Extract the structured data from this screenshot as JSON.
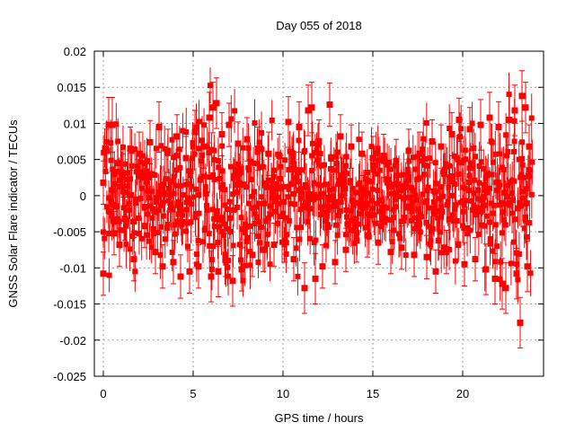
{
  "chart_data": {
    "type": "scatter",
    "title": "Day 055 of 2018",
    "xlabel": "GPS time / hours",
    "ylabel": "GNSS Solar Flare indicator / TECUs",
    "xlim": [
      -0.5,
      24.5
    ],
    "ylim": [
      -0.025,
      0.02
    ],
    "xticks": [
      0,
      5,
      10,
      15,
      20
    ],
    "xtick_labels": [
      "0",
      "5",
      "10",
      "15",
      "20"
    ],
    "yticks": [
      -0.025,
      -0.02,
      -0.015,
      -0.01,
      -0.005,
      0,
      0.005,
      0.01,
      0.015,
      0.02
    ],
    "ytick_labels": [
      "-0.025",
      "-0.02",
      "-0.015",
      "-0.01",
      "-0.005",
      "0",
      "0.005",
      "0.01",
      "0.015",
      "0.02"
    ],
    "grid": true,
    "series": [
      {
        "name": "GNSS Solar Flare indicator",
        "color": "#ff0000",
        "marker": "square",
        "error_bars": true,
        "points": [
          {
            "x": 0.0,
            "y": 0.0018,
            "err": 0.003
          },
          {
            "x": 0.0,
            "y": -0.0108,
            "err": 0.003
          },
          {
            "x": 0.2,
            "y": 0.0062,
            "err": 0.003
          },
          {
            "x": 0.3,
            "y": 0.0098,
            "err": 0.0038
          },
          {
            "x": 0.5,
            "y": 0.0098,
            "err": 0.0038
          },
          {
            "x": 0.6,
            "y": -0.0052,
            "err": 0.003
          },
          {
            "x": 0.8,
            "y": 0.0045,
            "err": 0.003
          },
          {
            "x": 0.9,
            "y": -0.0068,
            "err": 0.003
          },
          {
            "x": 1.1,
            "y": 0.0028,
            "err": 0.003
          },
          {
            "x": 1.2,
            "y": -0.0032,
            "err": 0.003
          },
          {
            "x": 1.5,
            "y": 0.0065,
            "err": 0.003
          },
          {
            "x": 1.7,
            "y": -0.0088,
            "err": 0.003
          },
          {
            "x": 2.0,
            "y": 0.0058,
            "err": 0.003
          },
          {
            "x": 2.3,
            "y": -0.0042,
            "err": 0.003
          },
          {
            "x": 2.6,
            "y": 0.0074,
            "err": 0.003
          },
          {
            "x": 2.9,
            "y": -0.0078,
            "err": 0.003
          },
          {
            "x": 3.1,
            "y": 0.0095,
            "err": 0.0035
          },
          {
            "x": 3.3,
            "y": -0.0098,
            "err": 0.003
          },
          {
            "x": 3.6,
            "y": 0.0062,
            "err": 0.003
          },
          {
            "x": 3.9,
            "y": -0.0092,
            "err": 0.003
          },
          {
            "x": 4.1,
            "y": 0.0082,
            "err": 0.003
          },
          {
            "x": 4.3,
            "y": -0.0112,
            "err": 0.003
          },
          {
            "x": 4.6,
            "y": 0.0052,
            "err": 0.003
          },
          {
            "x": 4.8,
            "y": -0.0105,
            "err": 0.003
          },
          {
            "x": 5.1,
            "y": 0.0088,
            "err": 0.003
          },
          {
            "x": 5.3,
            "y": -0.0098,
            "err": 0.003
          },
          {
            "x": 5.6,
            "y": 0.0068,
            "err": 0.003
          },
          {
            "x": 5.9,
            "y": 0.0108,
            "err": 0.0035
          },
          {
            "x": 6.0,
            "y": -0.0112,
            "err": 0.0035
          },
          {
            "x": 6.1,
            "y": 0.0122,
            "err": 0.0035
          },
          {
            "x": 6.3,
            "y": 0.0128,
            "err": 0.0035
          },
          {
            "x": 6.4,
            "y": -0.0105,
            "err": 0.0035
          },
          {
            "x": 6.6,
            "y": 0.0085,
            "err": 0.003
          },
          {
            "x": 6.8,
            "y": -0.0082,
            "err": 0.003
          },
          {
            "x": 7.0,
            "y": 0.0098,
            "err": 0.003
          },
          {
            "x": 7.2,
            "y": -0.0118,
            "err": 0.0035
          },
          {
            "x": 7.5,
            "y": 0.0072,
            "err": 0.003
          },
          {
            "x": 7.7,
            "y": -0.0102,
            "err": 0.003
          },
          {
            "x": 8.0,
            "y": 0.0078,
            "err": 0.003
          },
          {
            "x": 8.3,
            "y": -0.0082,
            "err": 0.003
          },
          {
            "x": 8.6,
            "y": 0.0065,
            "err": 0.003
          },
          {
            "x": 8.9,
            "y": -0.0075,
            "err": 0.003
          },
          {
            "x": 9.2,
            "y": 0.0058,
            "err": 0.003
          },
          {
            "x": 9.5,
            "y": -0.0068,
            "err": 0.003
          },
          {
            "x": 9.8,
            "y": 0.0055,
            "err": 0.003
          },
          {
            "x": 10.1,
            "y": -0.0062,
            "err": 0.003
          },
          {
            "x": 10.3,
            "y": 0.0102,
            "err": 0.0035
          },
          {
            "x": 10.6,
            "y": -0.0088,
            "err": 0.003
          },
          {
            "x": 10.9,
            "y": 0.0095,
            "err": 0.0035
          },
          {
            "x": 11.2,
            "y": -0.0128,
            "err": 0.0035
          },
          {
            "x": 11.4,
            "y": 0.0118,
            "err": 0.0035
          },
          {
            "x": 11.6,
            "y": 0.0122,
            "err": 0.0035
          },
          {
            "x": 11.8,
            "y": -0.0115,
            "err": 0.0035
          },
          {
            "x": 12.0,
            "y": 0.0075,
            "err": 0.003
          },
          {
            "x": 12.2,
            "y": -0.0098,
            "err": 0.003
          },
          {
            "x": 12.6,
            "y": 0.0126,
            "err": 0.003
          },
          {
            "x": 12.9,
            "y": -0.0092,
            "err": 0.003
          },
          {
            "x": 13.2,
            "y": 0.0082,
            "err": 0.003
          },
          {
            "x": 13.5,
            "y": -0.0075,
            "err": 0.003
          },
          {
            "x": 13.8,
            "y": 0.0068,
            "err": 0.003
          },
          {
            "x": 14.1,
            "y": -0.0062,
            "err": 0.003
          },
          {
            "x": 14.4,
            "y": 0.0058,
            "err": 0.003
          },
          {
            "x": 14.7,
            "y": -0.0055,
            "err": 0.003
          },
          {
            "x": 15.0,
            "y": 0.0052,
            "err": 0.003
          },
          {
            "x": 15.3,
            "y": -0.0065,
            "err": 0.003
          },
          {
            "x": 15.6,
            "y": 0.0055,
            "err": 0.003
          },
          {
            "x": 16.0,
            "y": -0.0078,
            "err": 0.003
          },
          {
            "x": 16.3,
            "y": 0.0048,
            "err": 0.003
          },
          {
            "x": 16.6,
            "y": -0.0072,
            "err": 0.003
          },
          {
            "x": 17.0,
            "y": 0.0062,
            "err": 0.003
          },
          {
            "x": 17.3,
            "y": -0.0082,
            "err": 0.003
          },
          {
            "x": 17.6,
            "y": 0.0058,
            "err": 0.003
          },
          {
            "x": 18.0,
            "y": -0.0085,
            "err": 0.003
          },
          {
            "x": 18.3,
            "y": 0.0075,
            "err": 0.003
          },
          {
            "x": 18.5,
            "y": -0.0105,
            "err": 0.003
          },
          {
            "x": 18.8,
            "y": 0.0068,
            "err": 0.003
          },
          {
            "x": 19.1,
            "y": -0.0078,
            "err": 0.003
          },
          {
            "x": 19.4,
            "y": 0.0085,
            "err": 0.003
          },
          {
            "x": 19.8,
            "y": 0.0105,
            "err": 0.003
          },
          {
            "x": 20.1,
            "y": -0.0095,
            "err": 0.003
          },
          {
            "x": 20.4,
            "y": 0.0092,
            "err": 0.003
          },
          {
            "x": 20.7,
            "y": -0.0088,
            "err": 0.003
          },
          {
            "x": 21.0,
            "y": 0.0098,
            "err": 0.0035
          },
          {
            "x": 21.3,
            "y": -0.0102,
            "err": 0.0035
          },
          {
            "x": 21.5,
            "y": 0.0108,
            "err": 0.0035
          },
          {
            "x": 21.8,
            "y": -0.0115,
            "err": 0.0035
          },
          {
            "x": 22.0,
            "y": 0.0095,
            "err": 0.0035
          },
          {
            "x": 22.2,
            "y": -0.0122,
            "err": 0.0035
          },
          {
            "x": 22.4,
            "y": -0.0128,
            "err": 0.0035
          },
          {
            "x": 22.6,
            "y": 0.0105,
            "err": 0.0035
          },
          {
            "x": 22.9,
            "y": 0.0118,
            "err": 0.0035
          },
          {
            "x": 23.0,
            "y": -0.0108,
            "err": 0.0035
          },
          {
            "x": 23.2,
            "y": -0.0176,
            "err": 0.0035
          },
          {
            "x": 23.3,
            "y": 0.0138,
            "err": 0.0035
          },
          {
            "x": 23.5,
            "y": 0.0122,
            "err": 0.0035
          },
          {
            "x": 23.6,
            "y": -0.0098,
            "err": 0.0035
          },
          {
            "x": 23.7,
            "y": 0.0068,
            "err": 0.003
          }
        ]
      }
    ]
  }
}
